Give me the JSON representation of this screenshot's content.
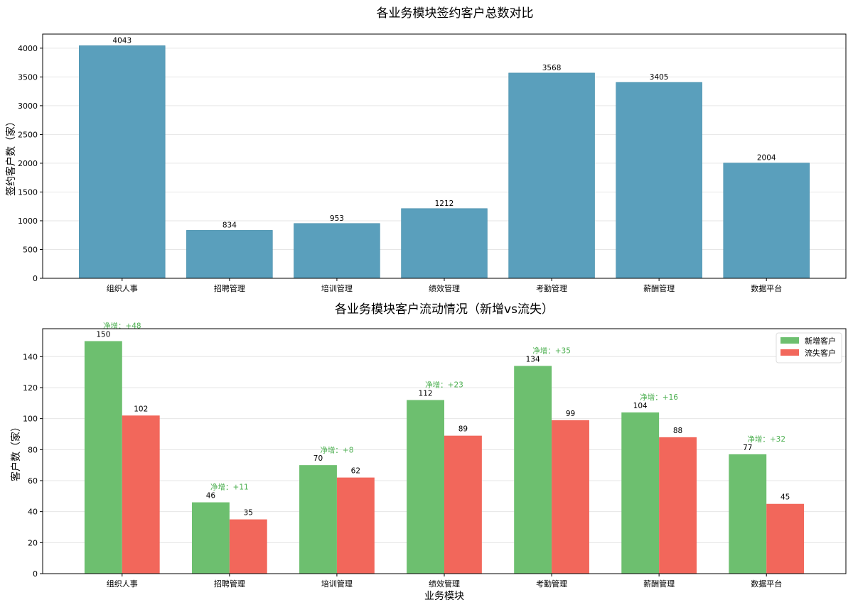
{
  "chart_data": [
    {
      "type": "bar",
      "title": "各业务模块签约客户总数对比",
      "xlabel": "",
      "ylabel": "签约客户数（家）",
      "categories": [
        "组织人事",
        "招聘管理",
        "培训管理",
        "绩效管理",
        "考勤管理",
        "薪酬管理",
        "数据平台"
      ],
      "values": [
        4043,
        834,
        953,
        1212,
        3568,
        3405,
        2004
      ],
      "ylim": [
        0,
        4245
      ],
      "yticks": [
        0,
        500,
        1000,
        1500,
        2000,
        2500,
        3000,
        3500,
        4000
      ],
      "grid": "y",
      "color": "#5a9fbc"
    },
    {
      "type": "bar",
      "title": "各业务模块客户流动情况（新增vs流失）",
      "xlabel": "业务模块",
      "ylabel": "客户数（家）",
      "categories": [
        "组织人事",
        "招聘管理",
        "培训管理",
        "绩效管理",
        "考勤管理",
        "薪酬管理",
        "数据平台"
      ],
      "series": [
        {
          "name": "新增客户",
          "values": [
            150,
            46,
            70,
            112,
            134,
            104,
            77
          ],
          "color": "#6dbf6f"
        },
        {
          "name": "流失客户",
          "values": [
            102,
            35,
            62,
            89,
            99,
            88,
            45
          ],
          "color": "#f2675b"
        }
      ],
      "annotations": [
        "净增：+48",
        "净增：+11",
        "净增：+8",
        "净增：+23",
        "净增：+35",
        "净增：+16",
        "净增：+32"
      ],
      "annotation_color": "#4caf50",
      "ylim": [
        0,
        158
      ],
      "yticks": [
        0,
        20,
        40,
        60,
        80,
        100,
        120,
        140
      ],
      "grid": "y",
      "legend": "top-right"
    }
  ]
}
